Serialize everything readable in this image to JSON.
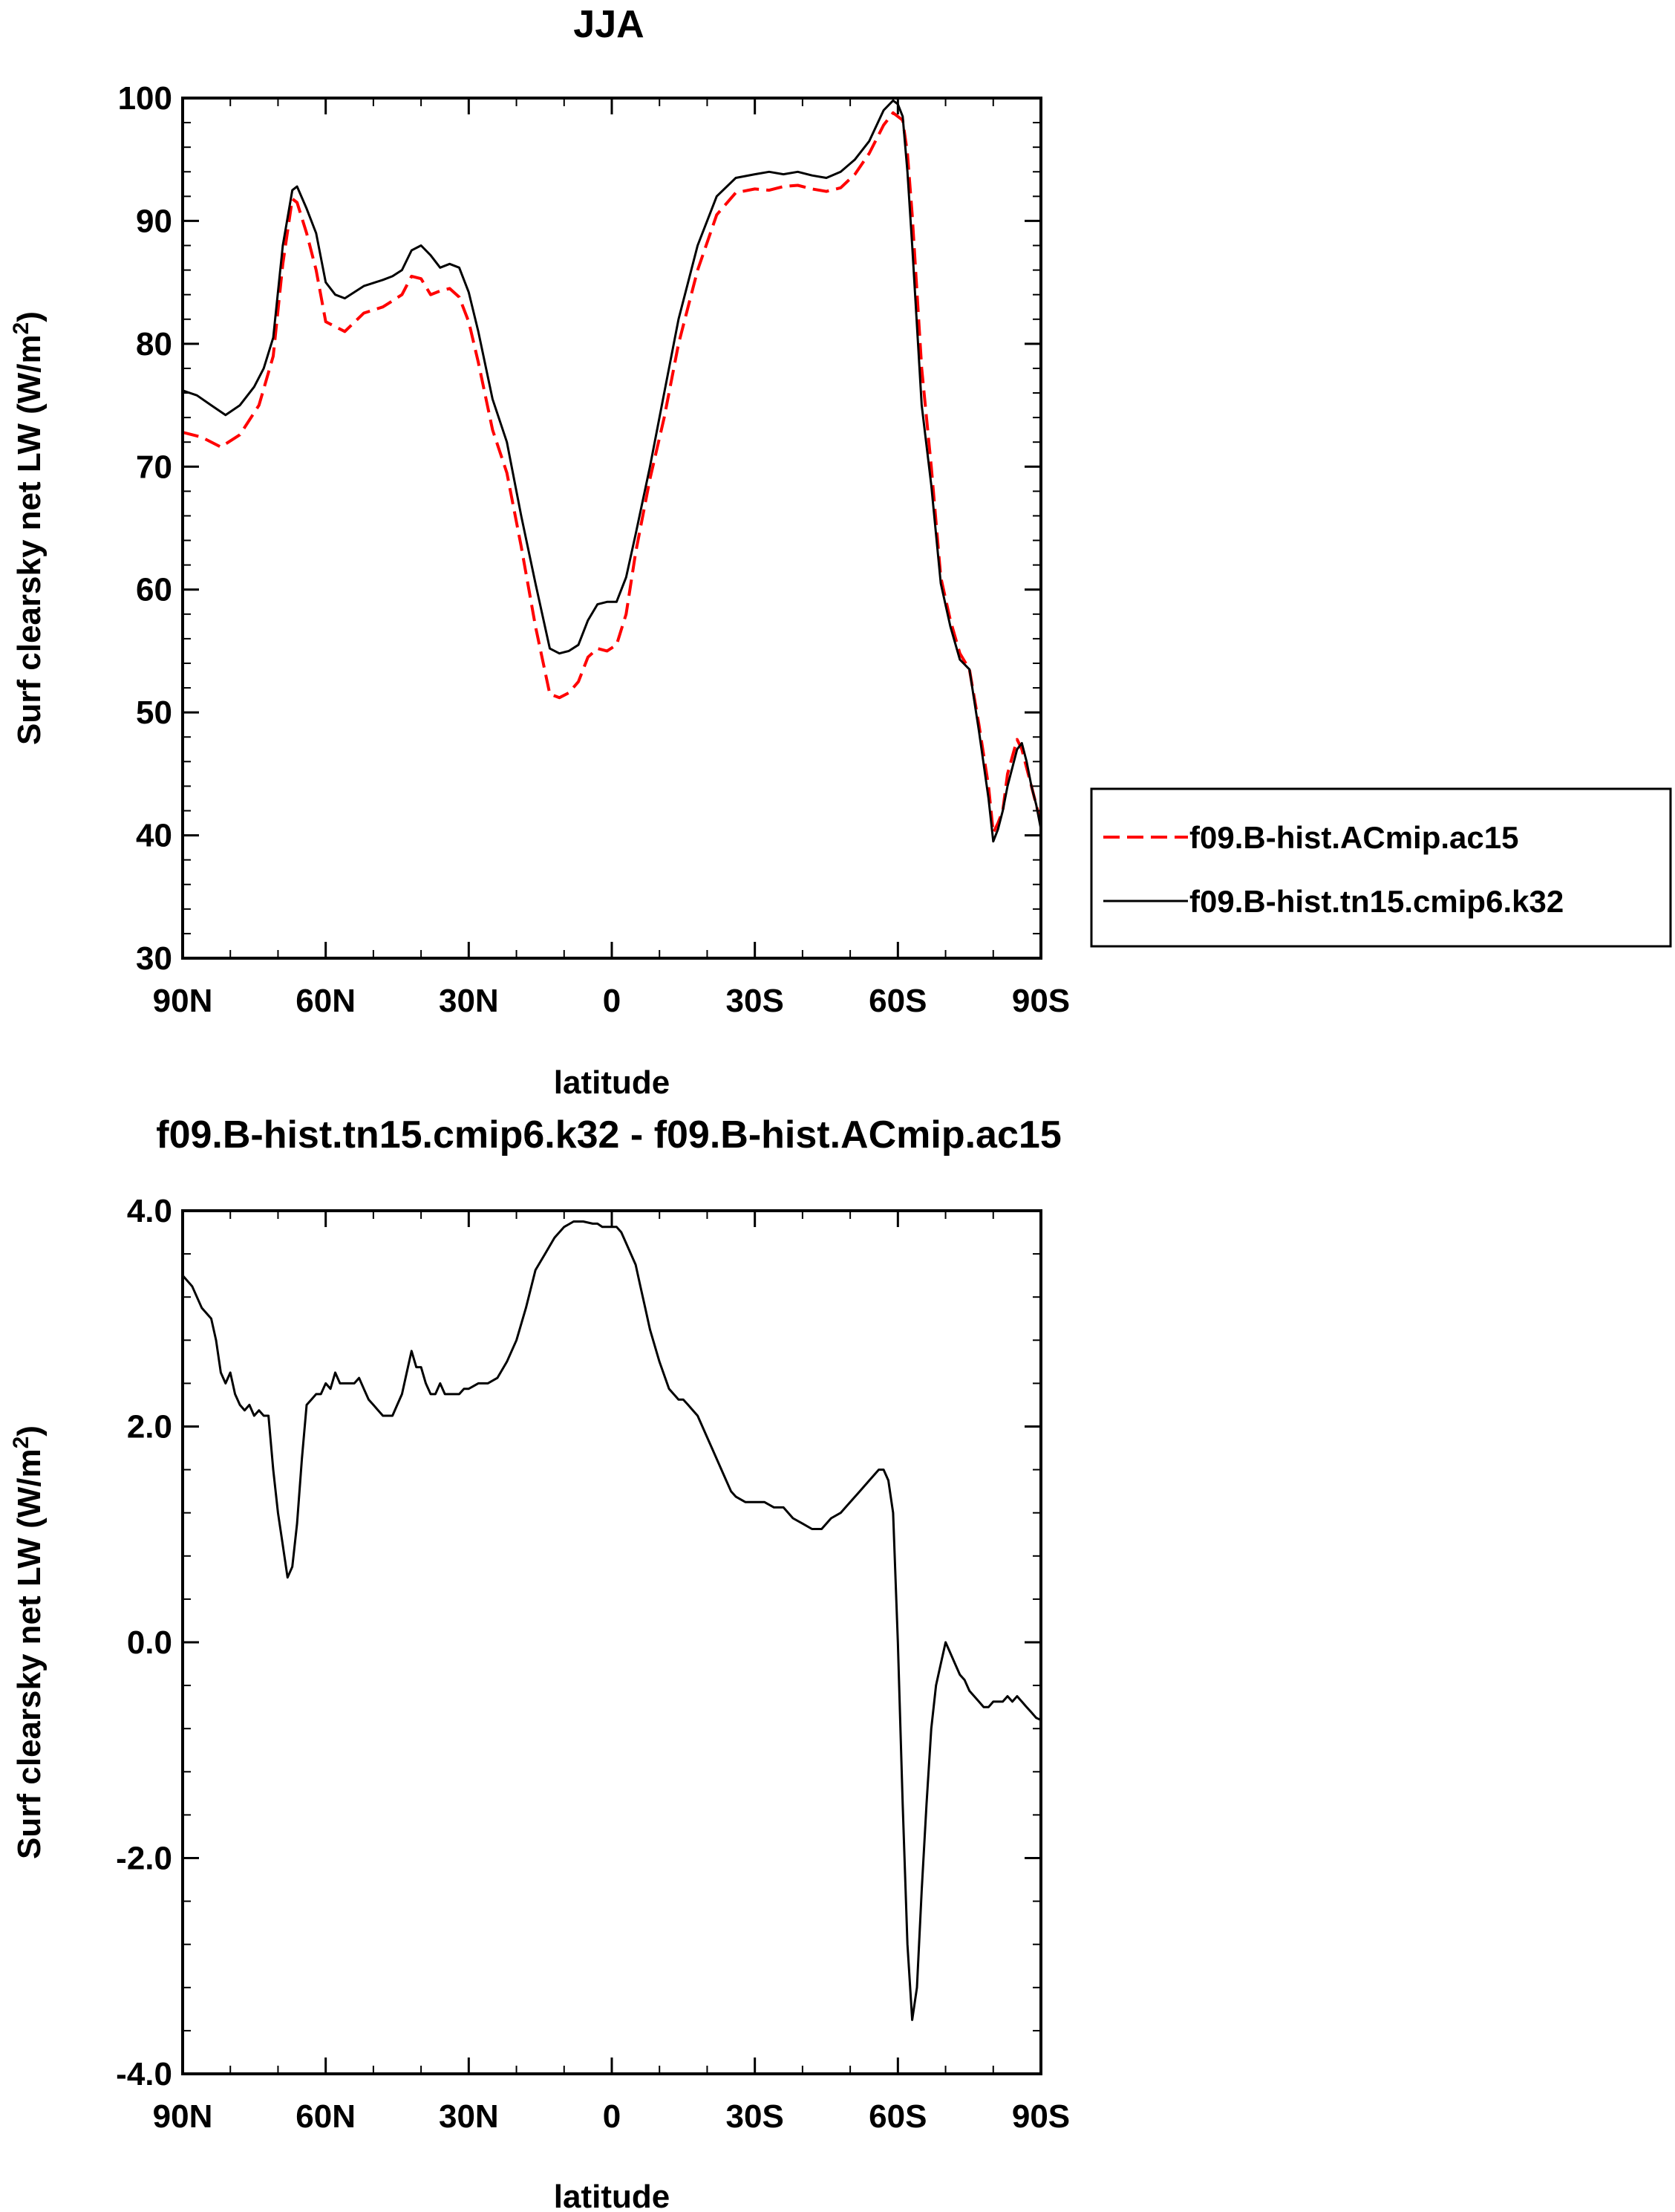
{
  "chart_data": [
    {
      "type": "line",
      "title": "JJA",
      "xlabel": "latitude",
      "ylabel_main": "Surf clearsky net LW (W/m",
      "ylabel_sup": "2",
      "ylabel_end": ")",
      "xlim": [
        90,
        -90
      ],
      "ylim": [
        30,
        100
      ],
      "xticks": [
        90,
        60,
        30,
        0,
        -30,
        -60,
        -90
      ],
      "xtick_labels": [
        "90N",
        "60N",
        "30N",
        "0",
        "30S",
        "60S",
        "90S"
      ],
      "yticks": [
        30,
        40,
        50,
        60,
        70,
        80,
        90,
        100
      ],
      "ytick_labels": [
        "30",
        "40",
        "50",
        "60",
        "70",
        "80",
        "90",
        "100"
      ],
      "legend_position": "right",
      "series": [
        {
          "name": "f09.B-hist.ACmip.ac15",
          "color": "#ff0000",
          "style": "dashed",
          "x": [
            90,
            86,
            82,
            78,
            74,
            71,
            69,
            67,
            66,
            64,
            62,
            60,
            56,
            52,
            48,
            46,
            44,
            42,
            40,
            38,
            36,
            34,
            32,
            30,
            28,
            25,
            22,
            19,
            16,
            13,
            11,
            9,
            7,
            5,
            3,
            1,
            -1,
            -3,
            -5,
            -8,
            -11,
            -14,
            -18,
            -22,
            -26,
            -30,
            -33,
            -36,
            -39,
            -42,
            -45,
            -48,
            -51,
            -54,
            -57,
            -59,
            -61,
            -62,
            -63,
            -65,
            -67,
            -69,
            -71,
            -73,
            -75,
            -77,
            -79,
            -80,
            -81,
            -82,
            -83,
            -85,
            -86,
            -87,
            -88,
            -89,
            -90
          ],
          "y": [
            72.8,
            72.4,
            71.6,
            72.6,
            75.0,
            79.0,
            86.5,
            91.8,
            91.5,
            89.0,
            86.0,
            81.8,
            81.0,
            82.5,
            83.0,
            83.5,
            84.0,
            85.5,
            85.3,
            84.0,
            84.3,
            84.5,
            83.8,
            81.8,
            78.5,
            73.0,
            69.5,
            63.5,
            57.0,
            51.5,
            51.2,
            51.6,
            52.5,
            54.5,
            55.2,
            55.0,
            55.5,
            58.0,
            63.0,
            69.0,
            74.0,
            80.0,
            86.0,
            90.5,
            92.3,
            92.6,
            92.5,
            92.8,
            92.9,
            92.6,
            92.4,
            92.7,
            93.8,
            95.5,
            97.8,
            98.8,
            98.2,
            95.5,
            90.5,
            78.0,
            70.0,
            61.0,
            57.5,
            54.8,
            53.5,
            49.0,
            44.0,
            40.2,
            41.0,
            42.0,
            45.0,
            47.8,
            47.0,
            45.5,
            44.0,
            42.5,
            41.0
          ]
        },
        {
          "name": "f09.B-hist.tn15.cmip6.k32",
          "color": "#000000",
          "style": "solid",
          "x": [
            90,
            87,
            84,
            81,
            78,
            75,
            73,
            71,
            69,
            67,
            66,
            64,
            62,
            60,
            58,
            56,
            52,
            48,
            46,
            44,
            42,
            40,
            38,
            36,
            34,
            32,
            30,
            28,
            25,
            22,
            19,
            16,
            13,
            11,
            9,
            7,
            5,
            3,
            1,
            -1,
            -3,
            -5,
            -8,
            -11,
            -14,
            -18,
            -22,
            -26,
            -30,
            -33,
            -36,
            -39,
            -42,
            -45,
            -48,
            -51,
            -54,
            -57,
            -59,
            -60,
            -61,
            -62,
            -63,
            -65,
            -67,
            -69,
            -71,
            -73,
            -75,
            -77,
            -79,
            -80,
            -81,
            -82,
            -83,
            -85,
            -86,
            -87,
            -88,
            -89,
            -90
          ],
          "y": [
            76.2,
            75.8,
            75.0,
            74.2,
            75.0,
            76.5,
            78.0,
            80.5,
            88.0,
            92.5,
            92.8,
            91.0,
            89.0,
            85.0,
            84.0,
            83.7,
            84.7,
            85.2,
            85.5,
            86.0,
            87.6,
            88.0,
            87.2,
            86.2,
            86.5,
            86.2,
            84.2,
            81.0,
            75.5,
            72.0,
            66.0,
            60.5,
            55.2,
            54.8,
            55.0,
            55.5,
            57.5,
            58.8,
            59.0,
            59.0,
            61.0,
            64.5,
            70.0,
            76.0,
            82.0,
            88.0,
            92.0,
            93.5,
            93.8,
            94.0,
            93.8,
            94.0,
            93.7,
            93.5,
            94.0,
            95.0,
            96.5,
            99.0,
            99.8,
            99.5,
            98.5,
            94.0,
            88.0,
            75.0,
            68.5,
            60.5,
            57.0,
            54.3,
            53.5,
            48.5,
            43.0,
            39.5,
            40.5,
            42.0,
            44.0,
            47.0,
            47.5,
            46.0,
            44.0,
            42.5,
            40.5
          ]
        }
      ]
    },
    {
      "type": "line",
      "title": "f09.B-hist.tn15.cmip6.k32 - f09.B-hist.ACmip.ac15",
      "xlabel": "latitude",
      "ylabel_main": "Surf clearsky net LW (W/m",
      "ylabel_sup": "2",
      "ylabel_end": ")",
      "xlim": [
        90,
        -90
      ],
      "ylim": [
        -4,
        4
      ],
      "xticks": [
        90,
        60,
        30,
        0,
        -30,
        -60,
        -90
      ],
      "xtick_labels": [
        "90N",
        "60N",
        "30N",
        "0",
        "30S",
        "60S",
        "90S"
      ],
      "yticks": [
        -4,
        -2,
        0,
        2,
        4
      ],
      "ytick_labels": [
        "-4.0",
        "-2.0",
        "0.0",
        "2.0",
        "4.0"
      ],
      "series": [
        {
          "color": "#000000",
          "style": "solid",
          "x": [
            90,
            88,
            86,
            84,
            83,
            82,
            81,
            80,
            79,
            78,
            77,
            76,
            75,
            74,
            73,
            72,
            71,
            70,
            69,
            68,
            67,
            66,
            65,
            64,
            63,
            62,
            61,
            60,
            59,
            58,
            57,
            56,
            55,
            54,
            53,
            52,
            51,
            50,
            49,
            48,
            47,
            46,
            45,
            44,
            43,
            42,
            41,
            40,
            39,
            38,
            37,
            36,
            35,
            34,
            33,
            32,
            31,
            30,
            28,
            26,
            24,
            22,
            20,
            18,
            16,
            14,
            12,
            10,
            8,
            6,
            4,
            3,
            2,
            1,
            0,
            -1,
            -2,
            -3,
            -4,
            -5,
            -6,
            -7,
            -8,
            -10,
            -12,
            -14,
            -15,
            -16,
            -17,
            -18,
            -19,
            -20,
            -21,
            -22,
            -23,
            -24,
            -25,
            -26,
            -28,
            -30,
            -32,
            -34,
            -36,
            -38,
            -40,
            -42,
            -44,
            -46,
            -48,
            -50,
            -52,
            -54,
            -56,
            -57,
            -58,
            -59,
            -60,
            -61,
            -62,
            -63,
            -64,
            -65,
            -66,
            -67,
            -68,
            -69,
            -70,
            -71,
            -72,
            -73,
            -74,
            -75,
            -76,
            -77,
            -78,
            -79,
            -80,
            -81,
            -82,
            -83,
            -84,
            -85,
            -86,
            -87,
            -88,
            -89,
            -90
          ],
          "y": [
            3.4,
            3.3,
            3.1,
            3.0,
            2.8,
            2.5,
            2.4,
            2.5,
            2.3,
            2.2,
            2.15,
            2.2,
            2.1,
            2.15,
            2.1,
            2.1,
            1.6,
            1.2,
            0.9,
            0.6,
            0.7,
            1.1,
            1.7,
            2.2,
            2.25,
            2.3,
            2.3,
            2.4,
            2.35,
            2.5,
            2.4,
            2.4,
            2.4,
            2.4,
            2.45,
            2.35,
            2.25,
            2.2,
            2.15,
            2.1,
            2.1,
            2.1,
            2.2,
            2.3,
            2.5,
            2.7,
            2.55,
            2.55,
            2.4,
            2.3,
            2.3,
            2.4,
            2.3,
            2.3,
            2.3,
            2.3,
            2.35,
            2.35,
            2.4,
            2.4,
            2.45,
            2.6,
            2.8,
            3.1,
            3.45,
            3.6,
            3.75,
            3.85,
            3.9,
            3.9,
            3.88,
            3.88,
            3.85,
            3.85,
            3.85,
            3.85,
            3.8,
            3.7,
            3.6,
            3.5,
            3.3,
            3.1,
            2.9,
            2.6,
            2.35,
            2.25,
            2.25,
            2.2,
            2.15,
            2.1,
            2.0,
            1.9,
            1.8,
            1.7,
            1.6,
            1.5,
            1.4,
            1.35,
            1.3,
            1.3,
            1.3,
            1.25,
            1.25,
            1.15,
            1.1,
            1.05,
            1.05,
            1.15,
            1.2,
            1.3,
            1.4,
            1.5,
            1.6,
            1.6,
            1.5,
            1.2,
            0.0,
            -1.5,
            -2.8,
            -3.5,
            -3.2,
            -2.3,
            -1.5,
            -0.8,
            -0.4,
            -0.2,
            0.0,
            -0.1,
            -0.2,
            -0.3,
            -0.35,
            -0.45,
            -0.5,
            -0.55,
            -0.6,
            -0.6,
            -0.55,
            -0.55,
            -0.55,
            -0.5,
            -0.55,
            -0.5,
            -0.55,
            -0.6,
            -0.65,
            -0.7,
            -0.72
          ]
        }
      ]
    }
  ]
}
